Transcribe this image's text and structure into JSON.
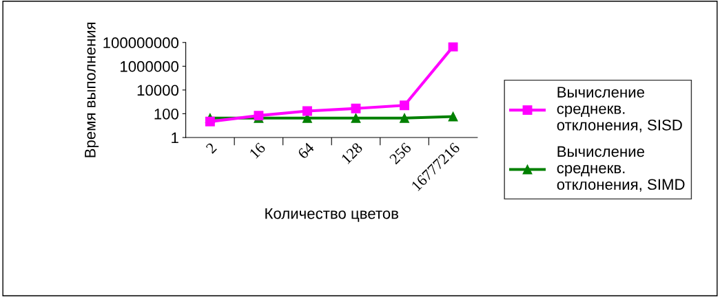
{
  "chart_data": {
    "type": "line",
    "xlabel": "Количество цветов",
    "ylabel": "Время выполнения",
    "categories": [
      "2",
      "16",
      "64",
      "128",
      "256",
      "16777216"
    ],
    "series": [
      {
        "name": "Вычисление среднекв. отклонения, SISD",
        "color": "#ff00ff",
        "marker": "square",
        "values": [
          22,
          70,
          170,
          280,
          510,
          45000000
        ]
      },
      {
        "name": "Вычисление среднекв. отклонения, SIMD",
        "color": "#008000",
        "marker": "triangle",
        "values": [
          43,
          43,
          43,
          43,
          43,
          58
        ]
      }
    ],
    "log": true,
    "ylim": [
      1,
      100000000
    ],
    "yticks": [
      1,
      100,
      10000,
      1000000,
      100000000
    ],
    "grid": false,
    "legend": "right",
    "line_style": "solid"
  }
}
